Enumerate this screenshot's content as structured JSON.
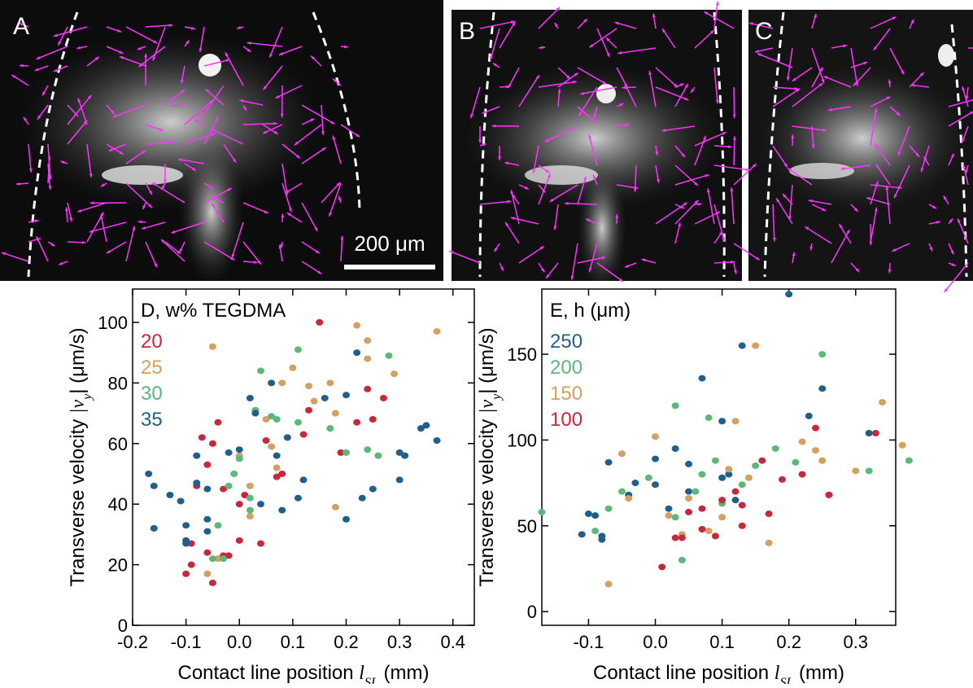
{
  "panels": [
    {
      "label": "A"
    },
    {
      "label": "B"
    },
    {
      "label": "C"
    }
  ],
  "scale_bar": "200 μm",
  "chart_data": [
    {
      "type": "scatter",
      "legend_title": "D, w% TEGDMA",
      "xlabel": [
        "Contact line position ",
        "l",
        "SL",
        " (mm)"
      ],
      "ylabel": [
        "Transverse velocity ",
        "|v",
        "y",
        "| (μm/s)"
      ],
      "xlim": [
        -0.2,
        0.44
      ],
      "xticks": [
        -0.2,
        -0.1,
        {
          "value": 0,
          "label": "0.0"
        },
        0.1,
        0.2,
        0.3,
        0.4
      ],
      "ylim": [
        0,
        111
      ],
      "yticks": [
        0,
        20,
        40,
        60,
        80,
        100
      ],
      "series": [
        {
          "name": "20",
          "color": "#c8283c",
          "x": [
            0.15,
            0.22,
            0.24,
            0.25,
            0.27,
            0.19,
            0.13,
            0.12,
            0.07,
            0.08,
            0.04,
            0.0,
            -0.03,
            -0.04,
            -0.05,
            -0.07,
            -0.08,
            -0.09,
            -0.09,
            -0.1,
            -0.06,
            -0.05,
            -0.03,
            -0.02,
            0.01,
            0.0,
            0.03,
            0.05,
            -0.06
          ],
          "values": [
            100,
            67,
            78,
            68,
            75,
            57,
            71,
            63,
            49,
            50,
            27,
            28,
            45,
            67,
            60,
            62,
            46,
            27,
            20,
            17,
            24,
            14,
            23,
            23,
            43,
            40,
            71,
            61,
            53
          ]
        },
        {
          "name": "25",
          "color": "#d4a060",
          "x": [
            0.37,
            0.22,
            0.24,
            0.24,
            0.29,
            0.17,
            0.18,
            0.14,
            0.1,
            0.08,
            0.07,
            0.05,
            0.06,
            -0.05,
            0.0,
            0.02,
            0.02,
            -0.04,
            -0.06,
            0.18,
            0.13
          ],
          "values": [
            97,
            99,
            94,
            88,
            83,
            80,
            70,
            74,
            85,
            80,
            52,
            68,
            59,
            92,
            56,
            46,
            36,
            22,
            17,
            39,
            79
          ]
        },
        {
          "name": "30",
          "color": "#5cb87a",
          "x": [
            0.11,
            0.28,
            0.24,
            0.26,
            0.17,
            0.2,
            0.06,
            0.07,
            0.09,
            0.11,
            0.04,
            0.03,
            0.0,
            -0.01,
            -0.04,
            -0.03,
            -0.05,
            -0.02,
            0.02,
            0.02
          ],
          "values": [
            91,
            89,
            58,
            56,
            65,
            57,
            69,
            68,
            62,
            67,
            84,
            71,
            55,
            50,
            33,
            22,
            22,
            46,
            38,
            42
          ]
        },
        {
          "name": "35",
          "color": "#1f5f8b",
          "x": [
            -0.17,
            -0.16,
            -0.13,
            -0.11,
            -0.1,
            -0.1,
            -0.1,
            -0.08,
            -0.08,
            -0.06,
            -0.06,
            -0.06,
            -0.02,
            0.0,
            0.02,
            0.03,
            0.04,
            0.06,
            0.07,
            0.08,
            0.09,
            0.11,
            0.12,
            0.16,
            0.2,
            0.2,
            0.22,
            0.23,
            0.25,
            0.3,
            0.31,
            0.34,
            0.35,
            0.37,
            0.3,
            -0.16
          ],
          "values": [
            50,
            46,
            43,
            41,
            33,
            28,
            27,
            47,
            56,
            35,
            31,
            45,
            57,
            58,
            75,
            70,
            40,
            80,
            56,
            38,
            62,
            42,
            48,
            75,
            76,
            35,
            90,
            42,
            45,
            57,
            56,
            65,
            66,
            61,
            48,
            32
          ]
        }
      ]
    },
    {
      "type": "scatter",
      "legend_title": "E, h (μm)",
      "xlabel": [
        "Contact line position ",
        "l",
        "SL",
        " (mm)"
      ],
      "ylabel": [
        "Transverse velocity ",
        "|v",
        "y",
        "| (μm/s)"
      ],
      "xlim": [
        -0.17,
        0.36
      ],
      "xticks": [
        -0.1,
        {
          "value": 0,
          "label": "0.0"
        },
        0.1,
        0.2,
        0.3
      ],
      "ylim": [
        -8,
        188
      ],
      "yticks": [
        0,
        50,
        100,
        150
      ],
      "series": [
        {
          "name": "250",
          "color": "#1f5f8b",
          "x": [
            0.2,
            0.13,
            0.25,
            0.07,
            0.1,
            0.23,
            0.32,
            -0.07,
            -0.1,
            -0.09,
            -0.11,
            -0.08,
            -0.08,
            -0.04,
            -0.03,
            0.0,
            0.0,
            0.03,
            0.05,
            0.1,
            0.11,
            0.12,
            0.05,
            0.02,
            0.26
          ],
          "values": [
            185,
            155,
            130,
            136,
            111,
            114,
            104,
            87,
            57,
            56,
            45,
            44,
            42,
            68,
            75,
            89,
            74,
            95,
            86,
            78,
            80,
            65,
            70,
            60,
            68
          ]
        },
        {
          "name": "200",
          "color": "#5cb87a",
          "x": [
            0.25,
            0.03,
            0.08,
            0.18,
            0.21,
            0.25,
            0.32,
            0.38,
            -0.17,
            -0.05,
            -0.07,
            -0.01,
            0.03,
            0.04,
            0.06,
            0.07,
            0.09,
            0.1,
            0.13,
            0.15,
            -0.09
          ],
          "values": [
            150,
            120,
            113,
            95,
            87,
            88,
            82,
            88,
            58,
            70,
            60,
            78,
            55,
            30,
            70,
            80,
            88,
            63,
            74,
            85,
            47
          ]
        },
        {
          "name": "150",
          "color": "#d4a060",
          "x": [
            0.15,
            0.12,
            0.34,
            0.37,
            0.22,
            0.3,
            0.24,
            -0.07,
            0.0,
            -0.05,
            -0.04,
            0.02,
            0.04,
            0.05,
            0.08,
            0.11,
            0.14,
            0.17,
            0.1,
            0.25
          ],
          "values": [
            155,
            111,
            122,
            97,
            99,
            82,
            94,
            16,
            102,
            92,
            66,
            56,
            45,
            66,
            47,
            83,
            78,
            40,
            55,
            88
          ]
        },
        {
          "name": "100",
          "color": "#c8283c",
          "x": [
            0.24,
            0.26,
            0.22,
            0.16,
            0.17,
            0.12,
            0.1,
            0.05,
            0.07,
            0.07,
            0.03,
            0.04,
            0.01,
            0.09,
            0.13,
            0.33,
            0.19,
            0.13
          ],
          "values": [
            107,
            68,
            80,
            88,
            57,
            70,
            65,
            58,
            60,
            48,
            43,
            43,
            26,
            44,
            62,
            104,
            77,
            50
          ]
        }
      ]
    }
  ]
}
